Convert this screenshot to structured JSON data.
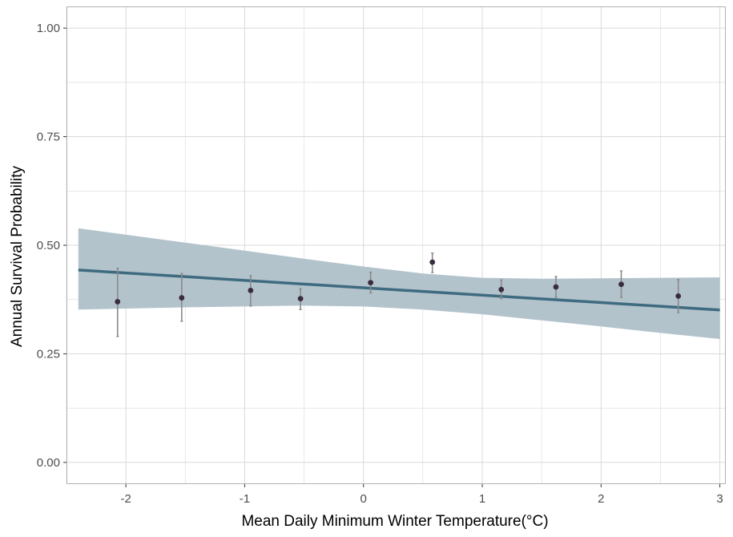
{
  "chart_data": {
    "type": "scatter",
    "xlabel": "Mean Daily Minimum Winter Temperature(°C)",
    "ylabel": "Annual Survival Probability",
    "xlim": [
      -2.5,
      3.05
    ],
    "ylim": [
      -0.05,
      1.05
    ],
    "x_ticks": [
      -2,
      -1,
      0,
      1,
      2,
      3
    ],
    "x_tick_labels": [
      "-2",
      "-1",
      "0",
      "1",
      "2",
      "3"
    ],
    "y_ticks": [
      0,
      0.25,
      0.5,
      0.75,
      1
    ],
    "y_tick_labels": [
      "0.00",
      "0.25",
      "0.50",
      "0.75",
      "1.00"
    ],
    "grid": true,
    "points": [
      {
        "x": -2.07,
        "y": 0.37,
        "lower": 0.29,
        "upper": 0.447
      },
      {
        "x": -1.53,
        "y": 0.379,
        "lower": 0.325,
        "upper": 0.435
      },
      {
        "x": -0.95,
        "y": 0.396,
        "lower": 0.36,
        "upper": 0.43
      },
      {
        "x": -0.53,
        "y": 0.377,
        "lower": 0.352,
        "upper": 0.4
      },
      {
        "x": 0.06,
        "y": 0.414,
        "lower": 0.39,
        "upper": 0.438
      },
      {
        "x": 0.58,
        "y": 0.461,
        "lower": 0.437,
        "upper": 0.482
      },
      {
        "x": 1.16,
        "y": 0.398,
        "lower": 0.377,
        "upper": 0.42
      },
      {
        "x": 1.62,
        "y": 0.404,
        "lower": 0.38,
        "upper": 0.428
      },
      {
        "x": 2.17,
        "y": 0.41,
        "lower": 0.38,
        "upper": 0.441
      },
      {
        "x": 2.65,
        "y": 0.383,
        "lower": 0.345,
        "upper": 0.421
      }
    ],
    "fit": {
      "x": [
        -2.4,
        3.0
      ],
      "y": [
        0.443,
        0.351
      ]
    },
    "ribbon": {
      "x": [
        -2.4,
        -1.5,
        -0.5,
        0,
        0.5,
        1.0,
        1.5,
        2.0,
        2.5,
        3.0
      ],
      "lower": [
        0.352,
        0.357,
        0.361,
        0.359,
        0.352,
        0.341,
        0.327,
        0.313,
        0.298,
        0.284
      ],
      "upper": [
        0.539,
        0.506,
        0.469,
        0.451,
        0.435,
        0.425,
        0.423,
        0.424,
        0.425,
        0.426
      ]
    },
    "colors": {
      "ribbon": "#b3c3cc",
      "line": "#3e6b80",
      "point": "#3a2b3f",
      "errorbar": "#8a8a8a",
      "grid": "#d9d9d9",
      "panel_border": "#b3b3b3"
    }
  }
}
